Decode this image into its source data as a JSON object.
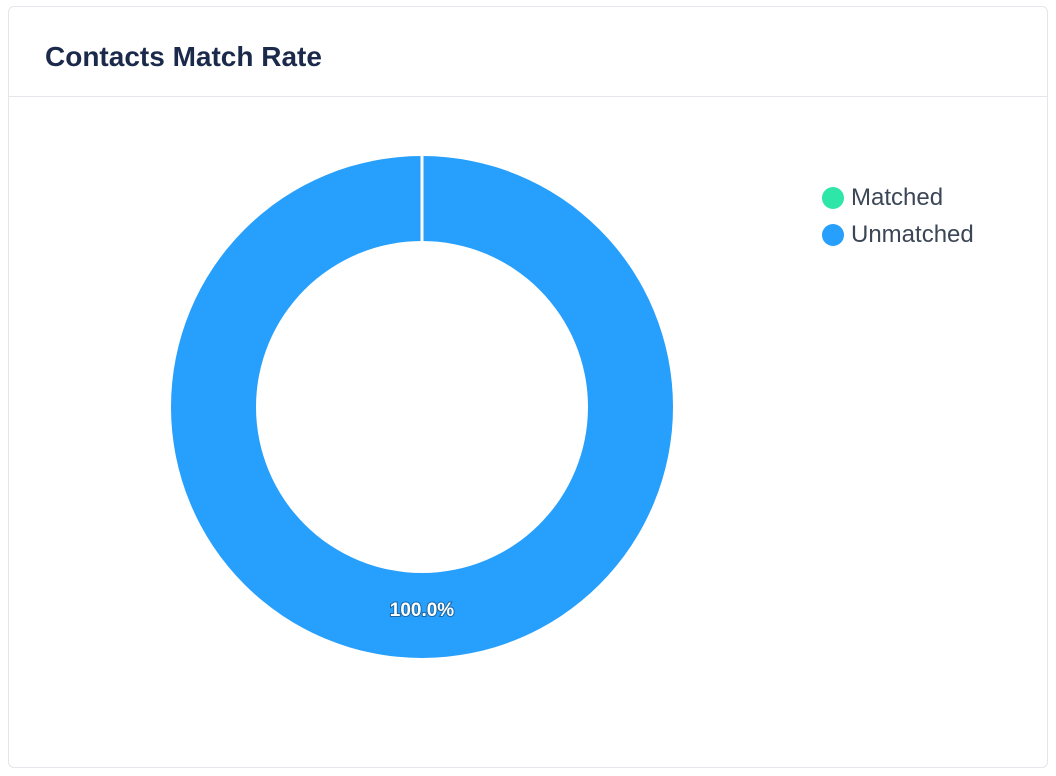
{
  "card": {
    "title": "Contacts Match Rate"
  },
  "chart_data": {
    "type": "pie",
    "variant": "donut",
    "categories": [
      "Matched",
      "Unmatched"
    ],
    "values": [
      0,
      100
    ],
    "colors": [
      "#2ee6a8",
      "#279ffc"
    ],
    "data_labels": [
      "",
      "100.0%"
    ],
    "legend_position": "top-right"
  }
}
